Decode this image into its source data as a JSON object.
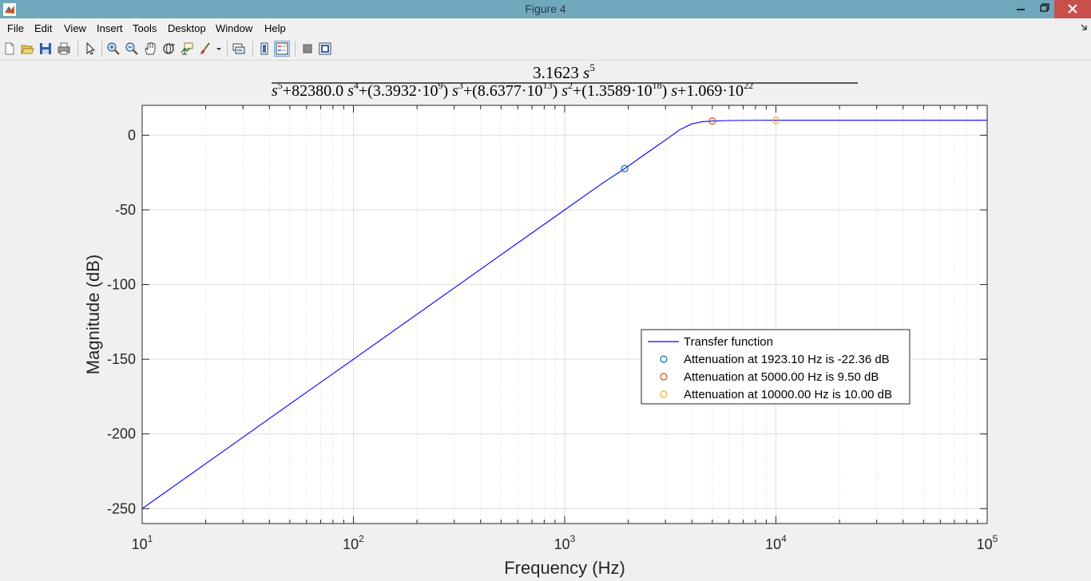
{
  "window": {
    "title": "Figure 4"
  },
  "menu": {
    "items": [
      "File",
      "Edit",
      "View",
      "Insert",
      "Tools",
      "Desktop",
      "Window",
      "Help"
    ]
  },
  "toolbar": {
    "icons": [
      "new-figure-icon",
      "open-file-icon",
      "save-icon",
      "print-icon",
      "edit-plot-arrow-icon",
      "zoom-in-icon",
      "zoom-out-icon",
      "pan-hand-icon",
      "rotate-3d-icon",
      "data-cursor-icon",
      "brush-icon",
      "link-plot-icon",
      "colorbar-icon",
      "legend-icon",
      "hide-plot-tools-icon",
      "show-plot-tools-icon"
    ]
  },
  "plot": {
    "title": {
      "numerator": {
        "coef": "3.1623",
        "var": "s",
        "exp": "5"
      },
      "denominator": [
        {
          "pre": "",
          "base": "s",
          "sup": "5",
          "post": ""
        },
        {
          "pre": "+82380.0 ",
          "base": "s",
          "sup": "4",
          "post": ""
        },
        {
          "pre": "+(3.3932·10",
          "sup1": "9",
          "mid": ") ",
          "base": "s",
          "sup": "3"
        },
        {
          "pre": "+(8.6377·10",
          "sup1": "13",
          "mid": ") ",
          "base": "s",
          "sup": "2"
        },
        {
          "pre": "+(1.3589·10",
          "sup1": "18",
          "mid": ") ",
          "base": "s",
          "sup": ""
        },
        {
          "pre": "+1.069·10",
          "sup1": "22"
        }
      ]
    },
    "xlabel": "Frequency (Hz)",
    "ylabel": "Magnitude (dB)",
    "colors": {
      "line": "#0000ff",
      "marker1": "#0072bd",
      "marker2": "#d95319",
      "marker3": "#edb120",
      "grid": "#dedede"
    }
  },
  "legend": {
    "entries": [
      "Transfer function",
      "Attenuation at 1923.10 Hz is -22.36 dB",
      "Attenuation at 5000.00 Hz is 9.50 dB",
      "Attenuation at 10000.00 Hz is 10.00 dB"
    ],
    "location": "center-right"
  },
  "chart_data": {
    "type": "line",
    "xscale": "log",
    "xlim": [
      10,
      100000
    ],
    "ylim": [
      -260,
      20
    ],
    "yticks": [
      0,
      -50,
      -100,
      -150,
      -200,
      -250
    ],
    "ytick_labels": [
      "0",
      "-50",
      "-100",
      "-150",
      "-200",
      "-250"
    ],
    "xticks": [
      10,
      100,
      1000,
      10000,
      100000
    ],
    "xtick_labels": [
      {
        "base": "10",
        "exp": "1"
      },
      {
        "base": "10",
        "exp": "2"
      },
      {
        "base": "10",
        "exp": "3"
      },
      {
        "base": "10",
        "exp": "4"
      },
      {
        "base": "10",
        "exp": "5"
      }
    ],
    "grid": true,
    "series": [
      {
        "name": "Transfer function",
        "x": [
          10,
          20,
          50,
          100,
          200,
          500,
          1000,
          1500,
          1923.1,
          2500,
          3000,
          3500,
          4000,
          4500,
          5000,
          6000,
          8000,
          10000,
          20000,
          50000,
          100000
        ],
        "y": [
          -250.0,
          -219.9,
          -180.0,
          -150.0,
          -119.9,
          -80.0,
          -50.0,
          -32.4,
          -22.36,
          -11.0,
          -3.2,
          3.6,
          7.6,
          9.1,
          9.5,
          9.85,
          9.98,
          10.0,
          10.0,
          10.0,
          10.0
        ]
      }
    ],
    "markers": [
      {
        "x": 1923.1,
        "y": -22.36
      },
      {
        "x": 5000.0,
        "y": 9.5
      },
      {
        "x": 10000.0,
        "y": 10.0
      }
    ]
  }
}
